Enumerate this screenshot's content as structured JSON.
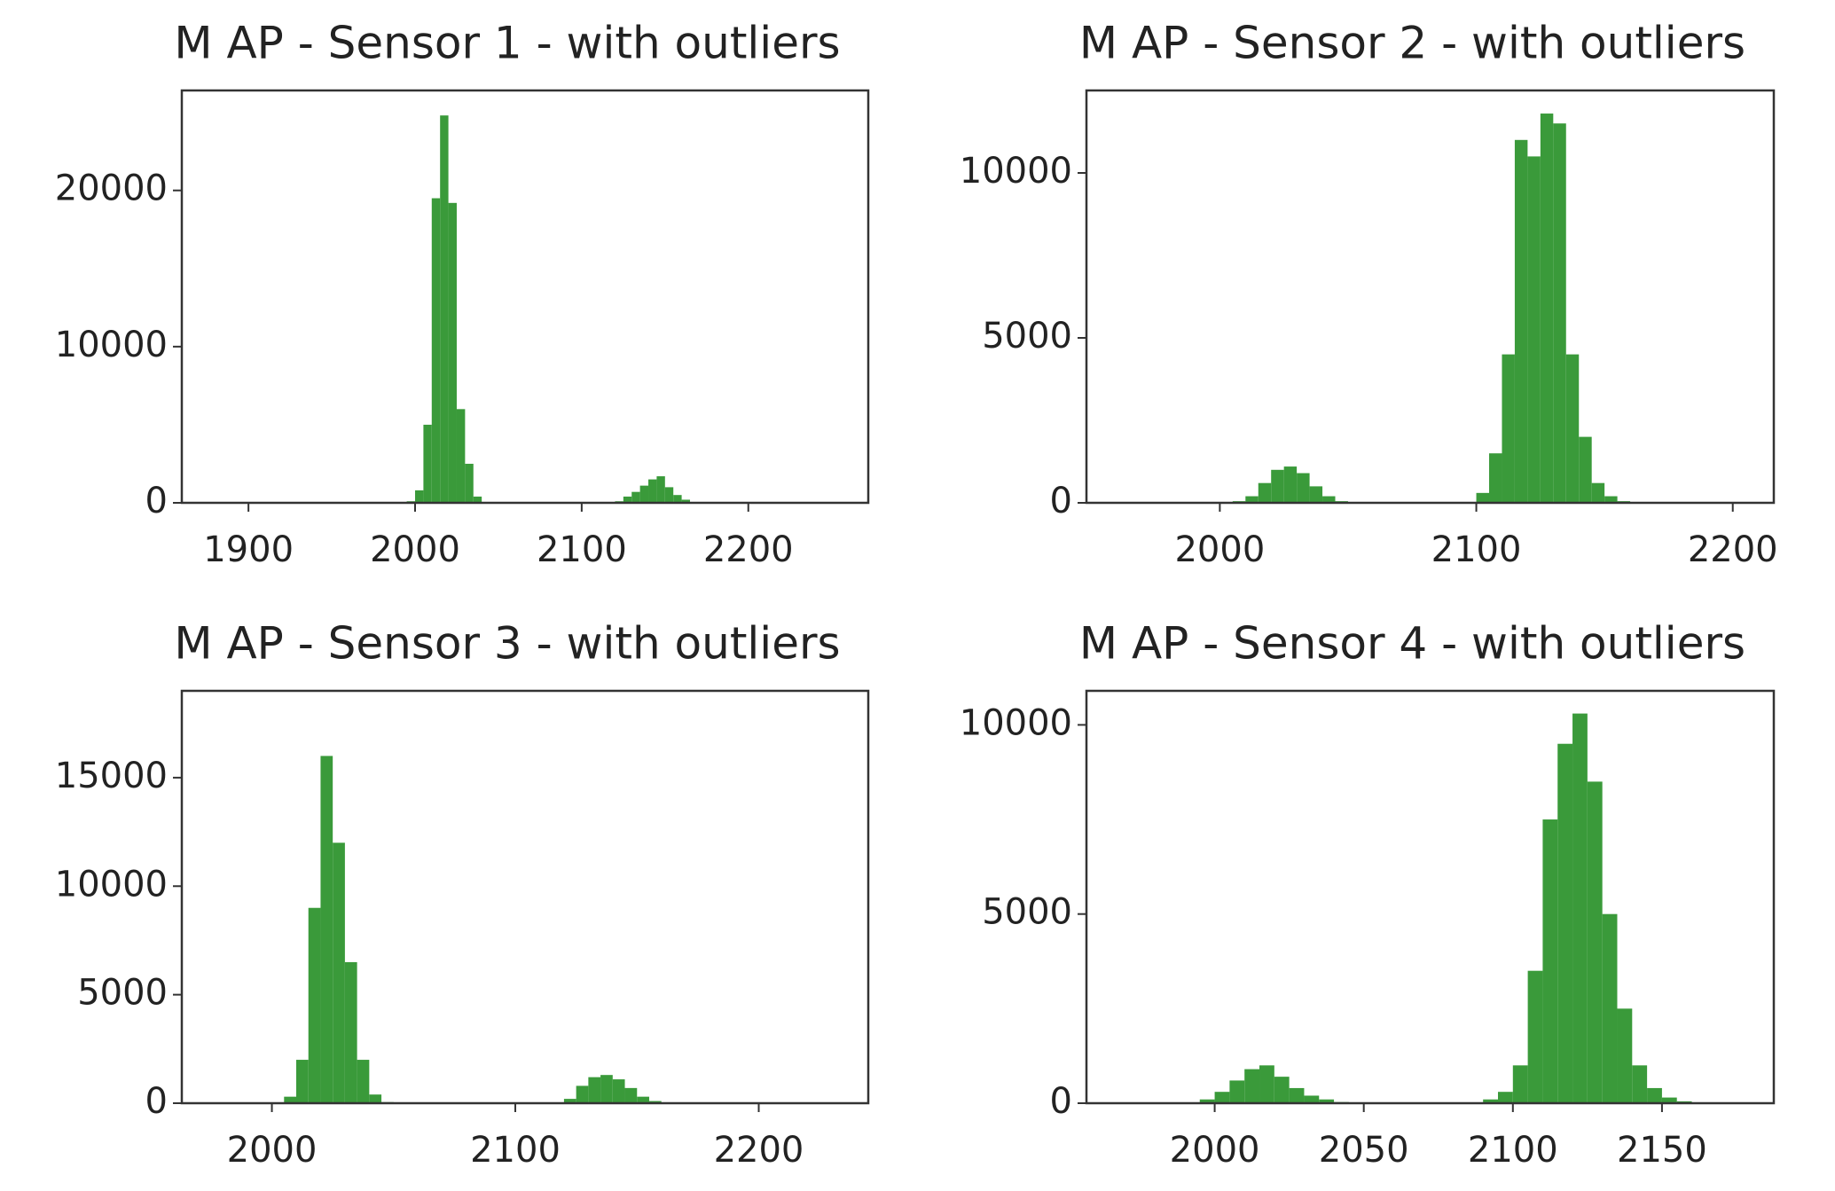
{
  "chart_data": [
    {
      "type": "histogram",
      "title": "M AP - Sensor 1 - with outliers",
      "color": "#3a9a3a",
      "bins": [
        1995,
        2000,
        2005,
        2010,
        2015,
        2020,
        2025,
        2030,
        2035,
        2040,
        2045,
        2050,
        2055,
        2060,
        2065,
        2070,
        2075,
        2080,
        2085,
        2090,
        2095,
        2100,
        2105,
        2110,
        2115,
        2120,
        2125,
        2130,
        2135,
        2140,
        2145,
        2150,
        2155,
        2160,
        2165,
        2170
      ],
      "counts": [
        100,
        800,
        5000,
        19500,
        24800,
        19200,
        6000,
        2500,
        400,
        0,
        0,
        0,
        0,
        0,
        0,
        0,
        0,
        0,
        0,
        0,
        0,
        0,
        0,
        0,
        0,
        100,
        400,
        700,
        1100,
        1500,
        1700,
        1000,
        500,
        200,
        50
      ],
      "xlim": [
        1860,
        2272
      ],
      "xticks": [
        1900,
        2000,
        2100,
        2200
      ],
      "ylim": [
        0,
        26400
      ],
      "yticks": [
        0,
        10000,
        20000
      ]
    },
    {
      "type": "histogram",
      "title": "M AP - Sensor 2 - with outliers",
      "color": "#3a9a3a",
      "bins": [
        2005,
        2010,
        2015,
        2020,
        2025,
        2030,
        2035,
        2040,
        2045,
        2050,
        2055,
        2060,
        2065,
        2070,
        2075,
        2080,
        2085,
        2090,
        2095,
        2100,
        2105,
        2110,
        2115,
        2120,
        2125,
        2130,
        2135,
        2140,
        2145,
        2150,
        2155,
        2160
      ],
      "counts": [
        50,
        200,
        600,
        1000,
        1100,
        900,
        500,
        200,
        50,
        0,
        0,
        0,
        0,
        0,
        0,
        0,
        0,
        0,
        0,
        300,
        1500,
        4500,
        11000,
        10500,
        11800,
        11500,
        4500,
        2000,
        600,
        200,
        50
      ],
      "xlim": [
        1948,
        2216
      ],
      "xticks": [
        2000,
        2100,
        2200
      ],
      "ylim": [
        0,
        12500
      ],
      "yticks": [
        0,
        5000,
        10000
      ]
    },
    {
      "type": "histogram",
      "title": "M AP - Sensor 3 - with outliers",
      "color": "#3a9a3a",
      "bins": [
        2005,
        2010,
        2015,
        2020,
        2025,
        2030,
        2035,
        2040,
        2045,
        2050,
        2055,
        2060,
        2065,
        2070,
        2075,
        2080,
        2085,
        2090,
        2095,
        2100,
        2105,
        2110,
        2115,
        2120,
        2125,
        2130,
        2135,
        2140,
        2145,
        2150,
        2155,
        2160
      ],
      "counts": [
        300,
        2000,
        9000,
        16000,
        12000,
        6500,
        2000,
        400,
        50,
        0,
        0,
        0,
        0,
        0,
        0,
        0,
        0,
        0,
        0,
        0,
        0,
        0,
        0,
        200,
        800,
        1200,
        1300,
        1100,
        700,
        300,
        100
      ],
      "xlim": [
        1963,
        2245
      ],
      "xticks": [
        2000,
        2100,
        2200
      ],
      "ylim": [
        0,
        19000
      ],
      "yticks": [
        0,
        5000,
        10000,
        15000
      ]
    },
    {
      "type": "histogram",
      "title": "M AP - Sensor 4 - with outliers",
      "color": "#3a9a3a",
      "bins": [
        1995,
        2000,
        2005,
        2010,
        2015,
        2020,
        2025,
        2030,
        2035,
        2040,
        2045,
        2050,
        2055,
        2060,
        2065,
        2070,
        2075,
        2080,
        2085,
        2090,
        2095,
        2100,
        2105,
        2110,
        2115,
        2120,
        2125,
        2130,
        2135,
        2140,
        2145,
        2150,
        2155,
        2160
      ],
      "counts": [
        100,
        300,
        600,
        900,
        1000,
        700,
        400,
        200,
        100,
        30,
        0,
        0,
        0,
        0,
        0,
        0,
        0,
        0,
        0,
        100,
        300,
        1000,
        3500,
        7500,
        9500,
        10300,
        8500,
        5000,
        2500,
        1000,
        400,
        150,
        50
      ],
      "xlim": [
        1957,
        2187.5
      ],
      "xticks": [
        2000,
        2050,
        2100,
        2150
      ],
      "ylim": [
        0,
        10900
      ],
      "yticks": [
        0,
        5000,
        10000
      ]
    }
  ]
}
